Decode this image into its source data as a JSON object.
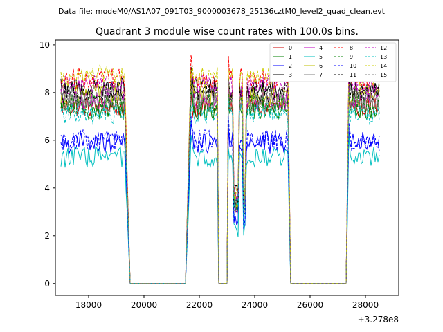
{
  "header": {
    "datafile_text": "Data file: modeM0/AS1A07_091T03_9000003678_25136cztM0_level2_quad_clean.evt"
  },
  "chart_data": {
    "type": "line",
    "title": "Quadrant 3 module wise count rates with 100.0s bins.",
    "xlabel": "",
    "ylabel": "",
    "x_offset_label": "+3.278e8",
    "x_offset": 327800000,
    "xlim": [
      16800,
      29200
    ],
    "ylim": [
      -0.5,
      10.2
    ],
    "xticks": [
      18000,
      20000,
      22000,
      24000,
      26000,
      28000
    ],
    "xtick_labels": [
      "18000",
      "20000",
      "22000",
      "24000",
      "26000",
      "28000"
    ],
    "yticks": [
      0,
      2,
      4,
      6,
      8,
      10
    ],
    "ytick_labels": [
      "0",
      "2",
      "4",
      "6",
      "8",
      "10"
    ],
    "grid": false,
    "legend_position": "top-right",
    "segments": [
      {
        "start": 17000,
        "end": 19300,
        "type": "data"
      },
      {
        "start": 19300,
        "end": 19500,
        "type": "fall"
      },
      {
        "start": 19500,
        "end": 21500,
        "type": "zero"
      },
      {
        "start": 21500,
        "end": 21700,
        "type": "rise"
      },
      {
        "start": 21700,
        "end": 22650,
        "type": "data"
      },
      {
        "start": 22650,
        "end": 22700,
        "type": "fall"
      },
      {
        "start": 22700,
        "end": 23000,
        "type": "zero"
      },
      {
        "start": 23000,
        "end": 23050,
        "type": "rise"
      },
      {
        "start": 23050,
        "end": 23200,
        "type": "data"
      },
      {
        "start": 23200,
        "end": 23400,
        "type": "dip"
      },
      {
        "start": 23400,
        "end": 23550,
        "type": "data"
      },
      {
        "start": 23550,
        "end": 23650,
        "type": "dip"
      },
      {
        "start": 23650,
        "end": 25200,
        "type": "data"
      },
      {
        "start": 25200,
        "end": 25300,
        "type": "fall"
      },
      {
        "start": 25300,
        "end": 27300,
        "type": "zero"
      },
      {
        "start": 27300,
        "end": 27400,
        "type": "rise"
      },
      {
        "start": 27400,
        "end": 28500,
        "type": "data"
      }
    ],
    "series": [
      {
        "name": "0",
        "color": "#cc0000",
        "style": "solid",
        "level": 7.4
      },
      {
        "name": "1",
        "color": "#008000",
        "style": "solid",
        "level": 7.3
      },
      {
        "name": "2",
        "color": "#0000ff",
        "style": "solid",
        "level": 5.9
      },
      {
        "name": "3",
        "color": "#000000",
        "style": "solid",
        "level": 8.2
      },
      {
        "name": "4",
        "color": "#bf00bf",
        "style": "solid",
        "level": 7.7
      },
      {
        "name": "5",
        "color": "#00bfbf",
        "style": "solid",
        "level": 5.3
      },
      {
        "name": "6",
        "color": "#bfbf00",
        "style": "solid",
        "level": 7.9
      },
      {
        "name": "7",
        "color": "#808080",
        "style": "solid",
        "level": 7.6
      },
      {
        "name": "8",
        "color": "#ff0000",
        "style": "dashed",
        "level": 8.6
      },
      {
        "name": "9",
        "color": "#008000",
        "style": "dashed",
        "level": 7.5
      },
      {
        "name": "10",
        "color": "#0000ff",
        "style": "dashed",
        "level": 6.0
      },
      {
        "name": "11",
        "color": "#000000",
        "style": "dashed",
        "level": 8.0
      },
      {
        "name": "12",
        "color": "#bf00bf",
        "style": "dashed",
        "level": 8.3
      },
      {
        "name": "13",
        "color": "#00bfbf",
        "style": "dashed",
        "level": 7.1
      },
      {
        "name": "14",
        "color": "#cccc00",
        "style": "dashed",
        "level": 8.7
      },
      {
        "name": "15",
        "color": "#808080",
        "style": "dashed",
        "level": 7.8
      }
    ]
  }
}
